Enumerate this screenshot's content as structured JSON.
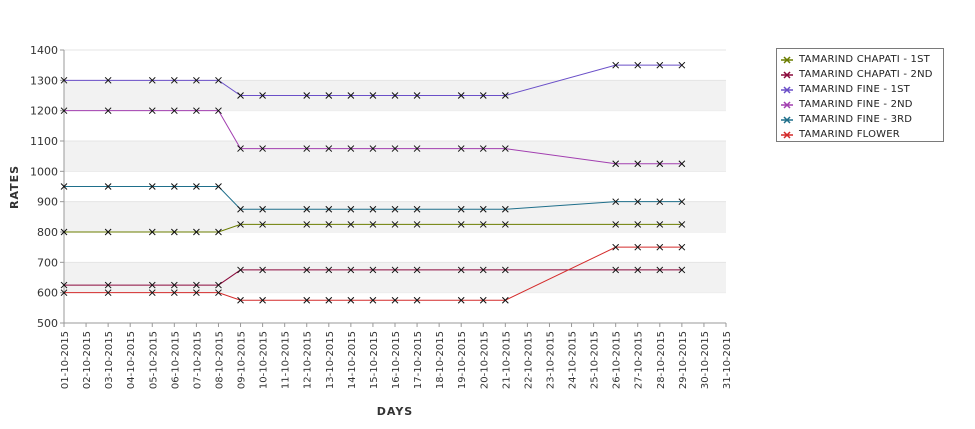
{
  "chart_data": {
    "type": "line",
    "xlabel": "DAYS",
    "ylabel": "RATES",
    "ylim": [
      500,
      1400
    ],
    "yticks": [
      500,
      600,
      700,
      800,
      900,
      1000,
      1100,
      1200,
      1300,
      1400
    ],
    "categories": [
      "01-10-2015",
      "02-10-2015",
      "03-10-2015",
      "04-10-2015",
      "05-10-2015",
      "06-10-2015",
      "07-10-2015",
      "08-10-2015",
      "09-10-2015",
      "10-10-2015",
      "11-10-2015",
      "12-10-2015",
      "13-10-2015",
      "14-10-2015",
      "15-10-2015",
      "16-10-2015",
      "17-10-2015",
      "18-10-2015",
      "19-10-2015",
      "20-10-2015",
      "21-10-2015",
      "22-10-2015",
      "23-10-2015",
      "24-10-2015",
      "25-10-2015",
      "26-10-2015",
      "27-10-2015",
      "28-10-2015",
      "29-10-2015",
      "30-10-2015",
      "31-10-2015"
    ],
    "grid": true,
    "legend_position": "right",
    "series": [
      {
        "name": "TAMARIND CHAPATI - 1ST",
        "color": "#6b7d00",
        "x": [
          "01-10-2015",
          "03-10-2015",
          "05-10-2015",
          "06-10-2015",
          "07-10-2015",
          "08-10-2015",
          "09-10-2015",
          "10-10-2015",
          "12-10-2015",
          "13-10-2015",
          "14-10-2015",
          "15-10-2015",
          "16-10-2015",
          "17-10-2015",
          "19-10-2015",
          "20-10-2015",
          "21-10-2015",
          "26-10-2015",
          "27-10-2015",
          "28-10-2015",
          "29-10-2015"
        ],
        "values": [
          800,
          800,
          800,
          800,
          800,
          800,
          825,
          825,
          825,
          825,
          825,
          825,
          825,
          825,
          825,
          825,
          825,
          825,
          825,
          825,
          825
        ]
      },
      {
        "name": "TAMARIND CHAPATI - 2ND",
        "color": "#8b0a3c",
        "x": [
          "01-10-2015",
          "03-10-2015",
          "05-10-2015",
          "06-10-2015",
          "07-10-2015",
          "08-10-2015",
          "09-10-2015",
          "10-10-2015",
          "12-10-2015",
          "13-10-2015",
          "14-10-2015",
          "15-10-2015",
          "16-10-2015",
          "17-10-2015",
          "19-10-2015",
          "20-10-2015",
          "21-10-2015",
          "26-10-2015",
          "27-10-2015",
          "28-10-2015",
          "29-10-2015"
        ],
        "values": [
          625,
          625,
          625,
          625,
          625,
          625,
          675,
          675,
          675,
          675,
          675,
          675,
          675,
          675,
          675,
          675,
          675,
          675,
          675,
          675,
          675
        ]
      },
      {
        "name": "TAMARIND FINE - 1ST",
        "color": "#6a4fc8",
        "x": [
          "01-10-2015",
          "03-10-2015",
          "05-10-2015",
          "06-10-2015",
          "07-10-2015",
          "08-10-2015",
          "09-10-2015",
          "10-10-2015",
          "12-10-2015",
          "13-10-2015",
          "14-10-2015",
          "15-10-2015",
          "16-10-2015",
          "17-10-2015",
          "19-10-2015",
          "20-10-2015",
          "21-10-2015",
          "26-10-2015",
          "27-10-2015",
          "28-10-2015",
          "29-10-2015"
        ],
        "values": [
          1300,
          1300,
          1300,
          1300,
          1300,
          1300,
          1250,
          1250,
          1250,
          1250,
          1250,
          1250,
          1250,
          1250,
          1250,
          1250,
          1250,
          1350,
          1350,
          1350,
          1350
        ]
      },
      {
        "name": "TAMARIND FINE - 2ND",
        "color": "#a23fb0",
        "x": [
          "01-10-2015",
          "03-10-2015",
          "05-10-2015",
          "06-10-2015",
          "07-10-2015",
          "08-10-2015",
          "09-10-2015",
          "10-10-2015",
          "12-10-2015",
          "13-10-2015",
          "14-10-2015",
          "15-10-2015",
          "16-10-2015",
          "17-10-2015",
          "19-10-2015",
          "20-10-2015",
          "21-10-2015",
          "26-10-2015",
          "27-10-2015",
          "28-10-2015",
          "29-10-2015"
        ],
        "values": [
          1200,
          1200,
          1200,
          1200,
          1200,
          1200,
          1075,
          1075,
          1075,
          1075,
          1075,
          1075,
          1075,
          1075,
          1075,
          1075,
          1075,
          1025,
          1025,
          1025,
          1025
        ]
      },
      {
        "name": "TAMARIND FINE - 3RD",
        "color": "#1f6f8b",
        "x": [
          "01-10-2015",
          "03-10-2015",
          "05-10-2015",
          "06-10-2015",
          "07-10-2015",
          "08-10-2015",
          "09-10-2015",
          "10-10-2015",
          "12-10-2015",
          "13-10-2015",
          "14-10-2015",
          "15-10-2015",
          "16-10-2015",
          "17-10-2015",
          "19-10-2015",
          "20-10-2015",
          "21-10-2015",
          "26-10-2015",
          "27-10-2015",
          "28-10-2015",
          "29-10-2015"
        ],
        "values": [
          950,
          950,
          950,
          950,
          950,
          950,
          875,
          875,
          875,
          875,
          875,
          875,
          875,
          875,
          875,
          875,
          875,
          900,
          900,
          900,
          900
        ]
      },
      {
        "name": "TAMARIND FLOWER",
        "color": "#d42b2b",
        "x": [
          "01-10-2015",
          "03-10-2015",
          "05-10-2015",
          "06-10-2015",
          "07-10-2015",
          "08-10-2015",
          "09-10-2015",
          "10-10-2015",
          "12-10-2015",
          "13-10-2015",
          "14-10-2015",
          "15-10-2015",
          "16-10-2015",
          "17-10-2015",
          "19-10-2015",
          "20-10-2015",
          "21-10-2015",
          "26-10-2015",
          "27-10-2015",
          "28-10-2015",
          "29-10-2015"
        ],
        "values": [
          600,
          600,
          600,
          600,
          600,
          600,
          575,
          575,
          575,
          575,
          575,
          575,
          575,
          575,
          575,
          575,
          575,
          750,
          750,
          750,
          750
        ]
      }
    ]
  }
}
